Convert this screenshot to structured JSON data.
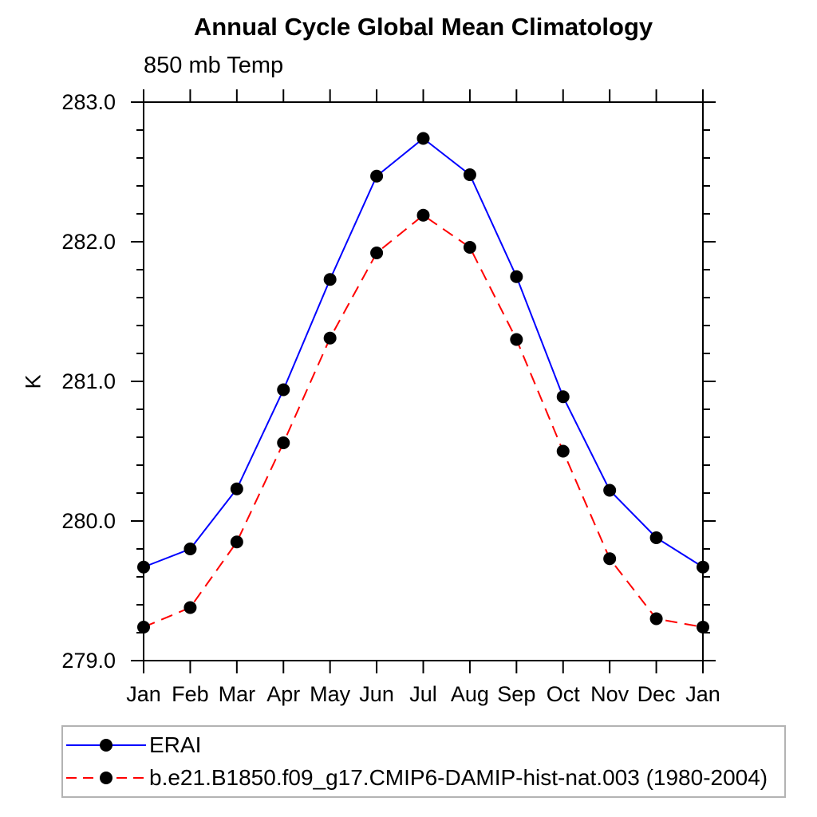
{
  "title": "Annual Cycle Global Mean Climatology",
  "subtitle": "850 mb Temp",
  "ylabel": "K",
  "colors": {
    "series1": "#0000ff",
    "series2": "#ff0000",
    "marker": "#000000",
    "axis": "#000000",
    "legend_border": "#b3b3b3"
  },
  "chart_data": {
    "type": "line",
    "title": "Annual Cycle Global Mean Climatology",
    "subtitle": "850 mb Temp",
    "xlabel": "",
    "ylabel": "K",
    "categories": [
      "Jan",
      "Feb",
      "Mar",
      "Apr",
      "May",
      "Jun",
      "Jul",
      "Aug",
      "Sep",
      "Oct",
      "Nov",
      "Dec",
      "Jan"
    ],
    "ylim": [
      279.0,
      283.0
    ],
    "ytick_labels": [
      "279.0",
      "280.0",
      "281.0",
      "282.0",
      "283.0"
    ],
    "ytick_major_step": 1.0,
    "ytick_minor_step": 0.2,
    "grid": false,
    "legend_position": "bottom-left boxed",
    "marker": {
      "shape": "circle",
      "color": "#000000",
      "radius": 8
    },
    "series": [
      {
        "name": "ERAI",
        "color": "#0000ff",
        "style": "solid",
        "values": [
          279.67,
          279.8,
          280.23,
          280.94,
          281.73,
          282.47,
          282.74,
          282.48,
          281.75,
          280.89,
          280.22,
          279.88,
          279.67
        ]
      },
      {
        "name": "b.e21.B1850.f09_g17.CMIP6-DAMIP-hist-nat.003 (1980-2004)",
        "color": "#ff0000",
        "style": "dashed",
        "values": [
          279.24,
          279.38,
          279.85,
          280.56,
          281.31,
          281.92,
          282.19,
          281.96,
          281.3,
          280.5,
          279.73,
          279.3,
          279.24
        ]
      }
    ]
  }
}
